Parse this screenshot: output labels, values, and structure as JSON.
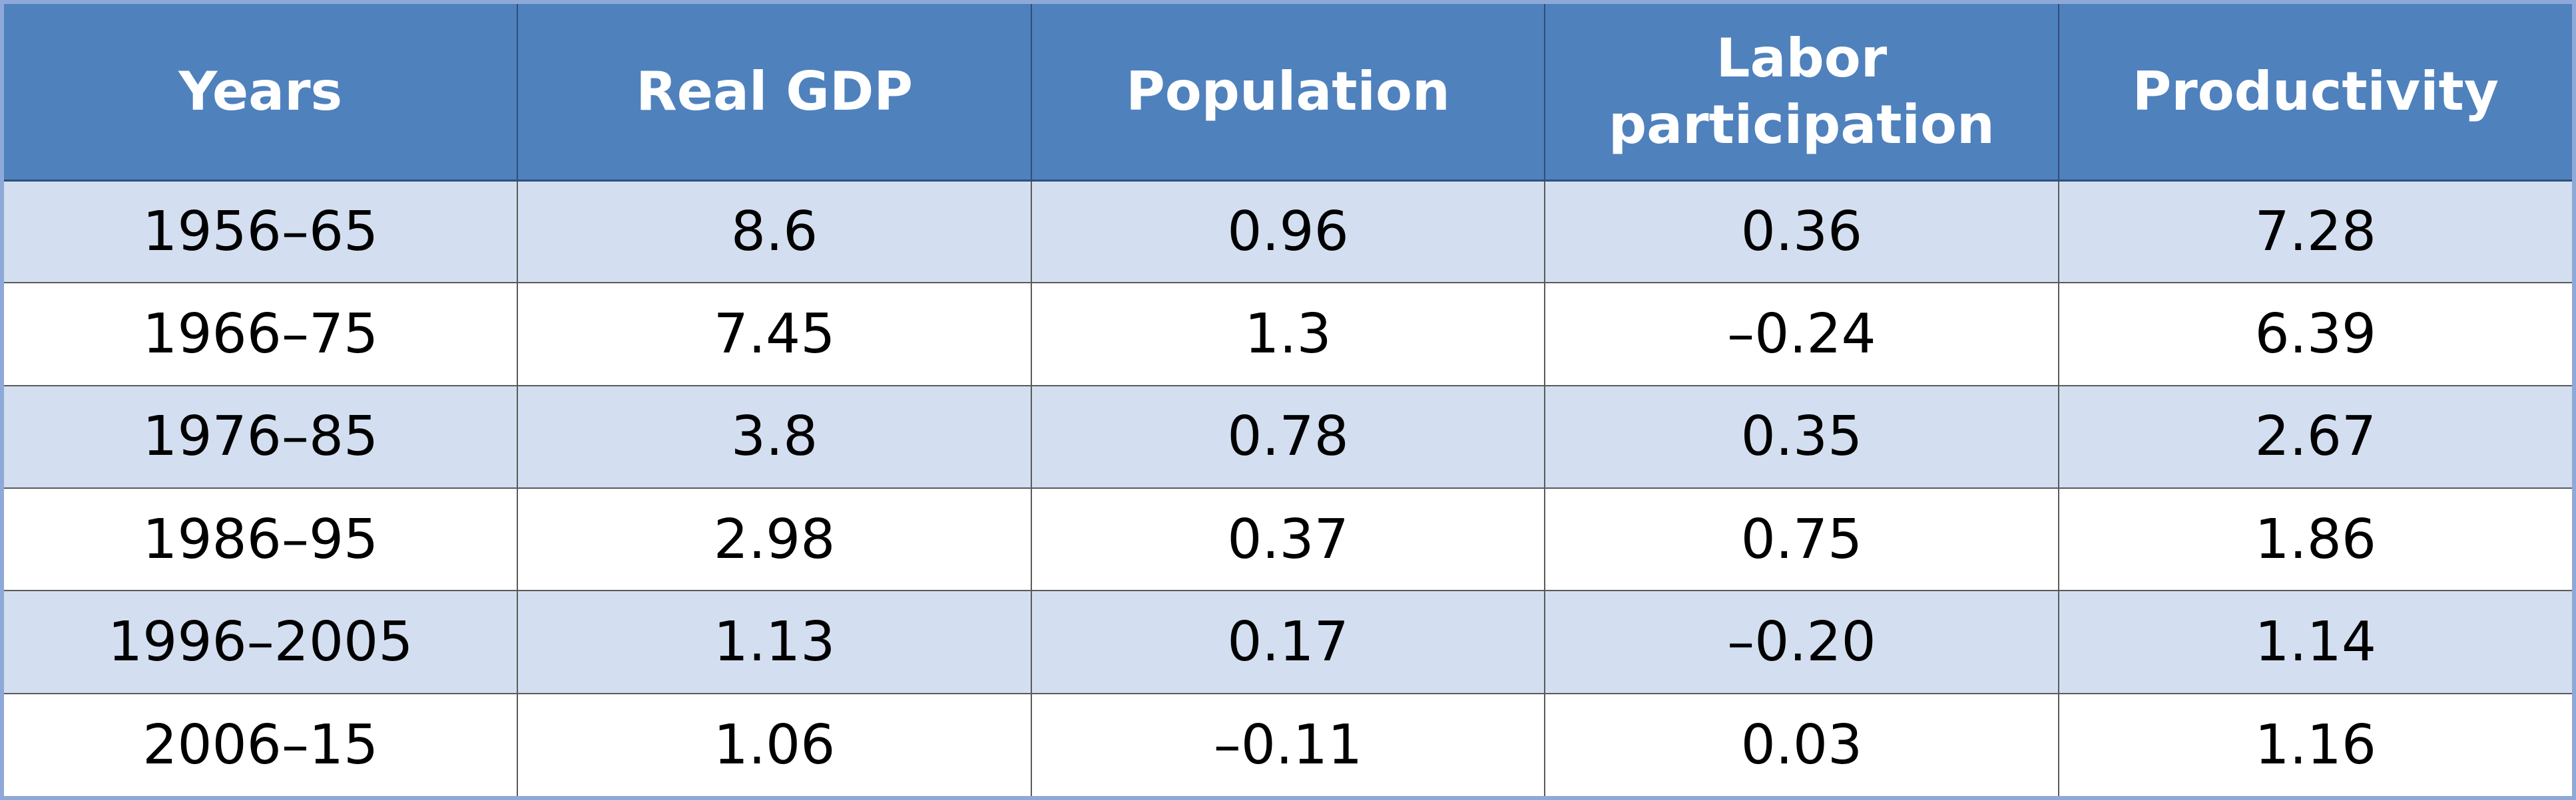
{
  "chart_data": {
    "type": "table",
    "columns": [
      "Years",
      "Real GDP",
      "Population",
      "Labor participation",
      "Productivity"
    ],
    "rows": [
      [
        "1956–65",
        "8.6",
        "0.96",
        "0.36",
        "7.28"
      ],
      [
        "1966–75",
        "7.45",
        "1.3",
        "–0.24",
        "6.39"
      ],
      [
        "1976–85",
        "3.8",
        "0.78",
        "0.35",
        "2.67"
      ],
      [
        "1986–95",
        "2.98",
        "0.37",
        "0.75",
        "1.86"
      ],
      [
        "1996–2005",
        "1.13",
        "0.17",
        "–0.20",
        "1.14"
      ],
      [
        "2006–15",
        "1.06",
        "–0.11",
        "0.03",
        "1.16"
      ]
    ]
  },
  "colors": {
    "header_bg": "#4f81bd",
    "header_text": "#ffffff",
    "band_row_bg": "#d3dff0",
    "plain_row_bg": "#ffffff",
    "frame": "#8ea9d8"
  }
}
